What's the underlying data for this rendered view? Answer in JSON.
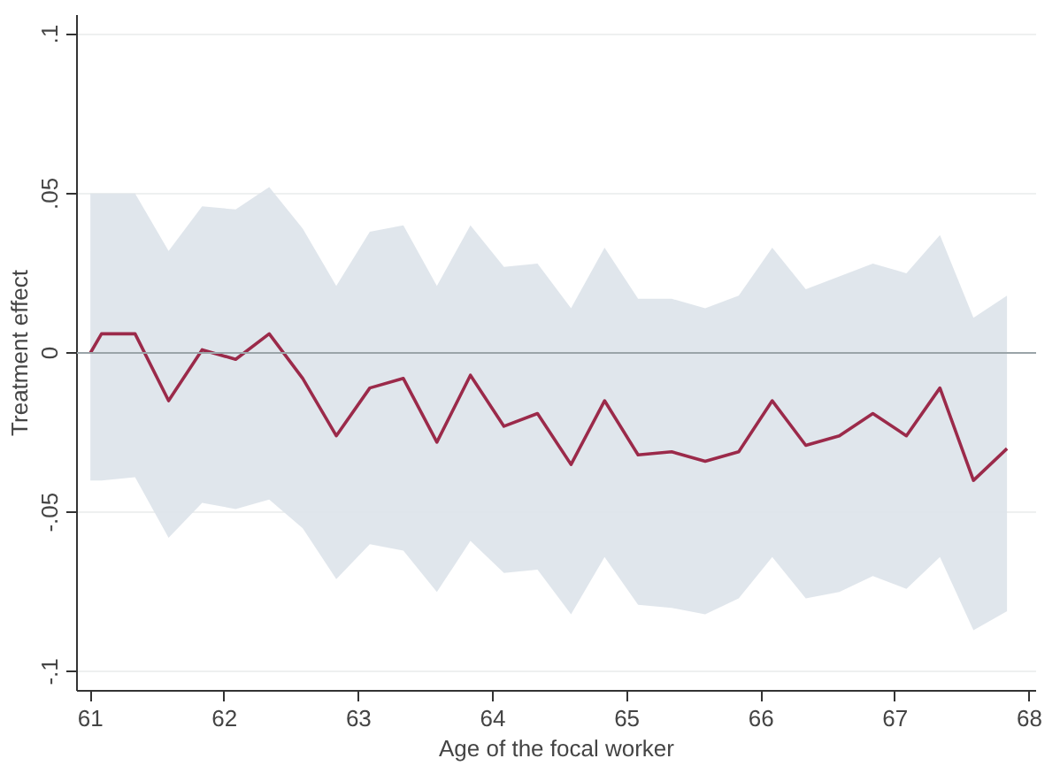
{
  "chart_data": {
    "type": "line",
    "xlabel": "Age of the focal worker",
    "ylabel": "Treatment effect",
    "x": [
      61,
      61.083,
      61.333,
      61.583,
      61.833,
      62.083,
      62.333,
      62.583,
      62.833,
      63.083,
      63.333,
      63.583,
      63.833,
      64.083,
      64.333,
      64.583,
      64.833,
      65.083,
      65.333,
      65.583,
      65.833,
      66.083,
      66.333,
      66.583,
      66.833,
      67.083,
      67.333,
      67.583,
      67.833
    ],
    "series": [
      {
        "color": "#9b2a4a",
        "values": [
          0,
          0.006,
          0.006,
          -0.015,
          0.001,
          -0.002,
          0.006,
          -0.008,
          -0.026,
          -0.011,
          -0.008,
          -0.028,
          -0.007,
          -0.023,
          -0.019,
          -0.035,
          -0.015,
          -0.032,
          -0.031,
          -0.034,
          -0.031,
          -0.015,
          -0.029,
          -0.026,
          -0.019,
          -0.026,
          -0.011,
          -0.04,
          -0.03
        ],
        "upper": [
          0.05,
          0.05,
          0.05,
          0.032,
          0.046,
          0.045,
          0.052,
          0.039,
          0.021,
          0.038,
          0.04,
          0.021,
          0.04,
          0.027,
          0.028,
          0.014,
          0.033,
          0.017,
          0.017,
          0.014,
          0.018,
          0.033,
          0.02,
          0.024,
          0.028,
          0.025,
          0.037,
          0.011,
          0.018
        ],
        "lower": [
          -0.04,
          -0.04,
          -0.039,
          -0.058,
          -0.047,
          -0.049,
          -0.046,
          -0.055,
          -0.071,
          -0.06,
          -0.062,
          -0.075,
          -0.059,
          -0.069,
          -0.068,
          -0.082,
          -0.064,
          -0.079,
          -0.08,
          -0.082,
          -0.077,
          -0.064,
          -0.077,
          -0.075,
          -0.07,
          -0.074,
          -0.064,
          -0.087,
          -0.081
        ]
      }
    ],
    "xlim": [
      60.9,
      68.05
    ],
    "xticks": [
      61,
      62,
      63,
      64,
      65,
      66,
      67,
      68
    ],
    "ylim": [
      -0.106,
      0.106
    ],
    "yticks": [
      {
        "value": -0.1,
        "label": "-.1"
      },
      {
        "value": -0.05,
        "label": "-.05"
      },
      0,
      {
        "value": 0.05,
        "label": ".05"
      },
      {
        "value": 0.1,
        "label": ".1"
      }
    ],
    "grid": "y",
    "ref_lines": [
      {
        "axis": "y",
        "value": 0,
        "color": "#9aa4a8"
      }
    ],
    "marker": "none",
    "line_style": "solid"
  }
}
